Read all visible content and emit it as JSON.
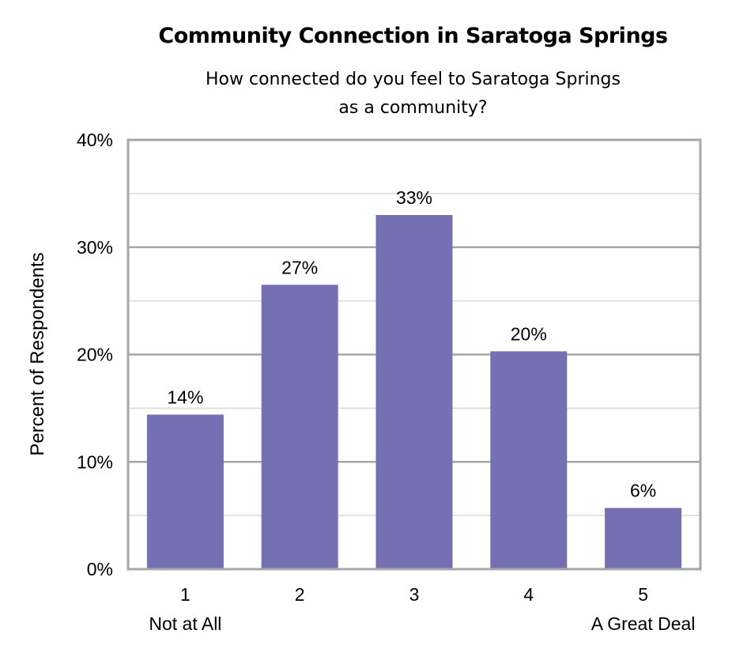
{
  "chart_data": {
    "type": "bar",
    "title": "Community Connection in Saratoga Springs",
    "subtitle": [
      "How connected do you feel to Saratoga Springs",
      "as a community?"
    ],
    "ylabel": "Percent of Respondents",
    "xlabel": "",
    "categories": [
      "1",
      "2",
      "3",
      "4",
      "5"
    ],
    "category_sublabels": [
      "Not at All",
      "",
      "",
      "",
      "A Great Deal"
    ],
    "values": [
      14.4,
      26.5,
      33.0,
      20.3,
      5.7
    ],
    "data_labels": [
      "14%",
      "27%",
      "33%",
      "20%",
      "6%"
    ],
    "ylim": [
      0,
      40
    ],
    "yticks": [
      0,
      10,
      20,
      30,
      40
    ],
    "ytick_labels": [
      "0%",
      "10%",
      "20%",
      "30%",
      "40%"
    ],
    "grid": true,
    "colors": {
      "bar": "#7570b3",
      "frame": "#a6a6a6",
      "grid": "#d9d9d9"
    }
  }
}
